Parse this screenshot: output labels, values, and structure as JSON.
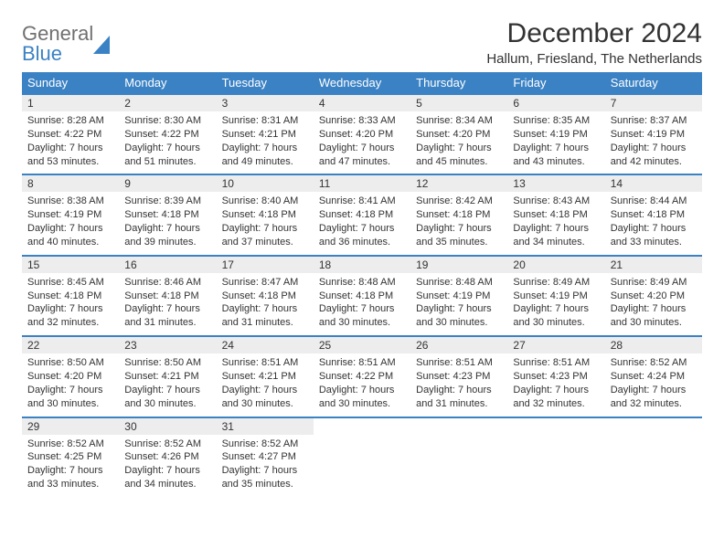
{
  "logo": {
    "top": "General",
    "bottom": "Blue"
  },
  "title": "December 2024",
  "subtitle": "Hallum, Friesland, The Netherlands",
  "colors": {
    "header_bg": "#3b82c4",
    "header_text": "#ffffff",
    "daynum_bg": "#ededed",
    "border": "#3b82c4",
    "text": "#333333",
    "logo_gray": "#707070",
    "logo_blue": "#3b82c4",
    "page_bg": "#ffffff"
  },
  "weekdays": [
    "Sunday",
    "Monday",
    "Tuesday",
    "Wednesday",
    "Thursday",
    "Friday",
    "Saturday"
  ],
  "weeks": [
    {
      "nums": [
        "1",
        "2",
        "3",
        "4",
        "5",
        "6",
        "7"
      ],
      "cells": [
        {
          "sr": "8:28 AM",
          "ss": "4:22 PM",
          "dh": "7",
          "dm": "53"
        },
        {
          "sr": "8:30 AM",
          "ss": "4:22 PM",
          "dh": "7",
          "dm": "51"
        },
        {
          "sr": "8:31 AM",
          "ss": "4:21 PM",
          "dh": "7",
          "dm": "49"
        },
        {
          "sr": "8:33 AM",
          "ss": "4:20 PM",
          "dh": "7",
          "dm": "47"
        },
        {
          "sr": "8:34 AM",
          "ss": "4:20 PM",
          "dh": "7",
          "dm": "45"
        },
        {
          "sr": "8:35 AM",
          "ss": "4:19 PM",
          "dh": "7",
          "dm": "43"
        },
        {
          "sr": "8:37 AM",
          "ss": "4:19 PM",
          "dh": "7",
          "dm": "42"
        }
      ]
    },
    {
      "nums": [
        "8",
        "9",
        "10",
        "11",
        "12",
        "13",
        "14"
      ],
      "cells": [
        {
          "sr": "8:38 AM",
          "ss": "4:19 PM",
          "dh": "7",
          "dm": "40"
        },
        {
          "sr": "8:39 AM",
          "ss": "4:18 PM",
          "dh": "7",
          "dm": "39"
        },
        {
          "sr": "8:40 AM",
          "ss": "4:18 PM",
          "dh": "7",
          "dm": "37"
        },
        {
          "sr": "8:41 AM",
          "ss": "4:18 PM",
          "dh": "7",
          "dm": "36"
        },
        {
          "sr": "8:42 AM",
          "ss": "4:18 PM",
          "dh": "7",
          "dm": "35"
        },
        {
          "sr": "8:43 AM",
          "ss": "4:18 PM",
          "dh": "7",
          "dm": "34"
        },
        {
          "sr": "8:44 AM",
          "ss": "4:18 PM",
          "dh": "7",
          "dm": "33"
        }
      ]
    },
    {
      "nums": [
        "15",
        "16",
        "17",
        "18",
        "19",
        "20",
        "21"
      ],
      "cells": [
        {
          "sr": "8:45 AM",
          "ss": "4:18 PM",
          "dh": "7",
          "dm": "32"
        },
        {
          "sr": "8:46 AM",
          "ss": "4:18 PM",
          "dh": "7",
          "dm": "31"
        },
        {
          "sr": "8:47 AM",
          "ss": "4:18 PM",
          "dh": "7",
          "dm": "31"
        },
        {
          "sr": "8:48 AM",
          "ss": "4:18 PM",
          "dh": "7",
          "dm": "30"
        },
        {
          "sr": "8:48 AM",
          "ss": "4:19 PM",
          "dh": "7",
          "dm": "30"
        },
        {
          "sr": "8:49 AM",
          "ss": "4:19 PM",
          "dh": "7",
          "dm": "30"
        },
        {
          "sr": "8:49 AM",
          "ss": "4:20 PM",
          "dh": "7",
          "dm": "30"
        }
      ]
    },
    {
      "nums": [
        "22",
        "23",
        "24",
        "25",
        "26",
        "27",
        "28"
      ],
      "cells": [
        {
          "sr": "8:50 AM",
          "ss": "4:20 PM",
          "dh": "7",
          "dm": "30"
        },
        {
          "sr": "8:50 AM",
          "ss": "4:21 PM",
          "dh": "7",
          "dm": "30"
        },
        {
          "sr": "8:51 AM",
          "ss": "4:21 PM",
          "dh": "7",
          "dm": "30"
        },
        {
          "sr": "8:51 AM",
          "ss": "4:22 PM",
          "dh": "7",
          "dm": "30"
        },
        {
          "sr": "8:51 AM",
          "ss": "4:23 PM",
          "dh": "7",
          "dm": "31"
        },
        {
          "sr": "8:51 AM",
          "ss": "4:23 PM",
          "dh": "7",
          "dm": "32"
        },
        {
          "sr": "8:52 AM",
          "ss": "4:24 PM",
          "dh": "7",
          "dm": "32"
        }
      ]
    },
    {
      "nums": [
        "29",
        "30",
        "31",
        "",
        "",
        "",
        ""
      ],
      "cells": [
        {
          "sr": "8:52 AM",
          "ss": "4:25 PM",
          "dh": "7",
          "dm": "33"
        },
        {
          "sr": "8:52 AM",
          "ss": "4:26 PM",
          "dh": "7",
          "dm": "34"
        },
        {
          "sr": "8:52 AM",
          "ss": "4:27 PM",
          "dh": "7",
          "dm": "35"
        },
        null,
        null,
        null,
        null
      ]
    }
  ],
  "labels": {
    "sunrise": "Sunrise:",
    "sunset": "Sunset:",
    "daylight_prefix": "Daylight:",
    "hours_word": "hours",
    "and_word": "and",
    "minutes_word": "minutes."
  }
}
